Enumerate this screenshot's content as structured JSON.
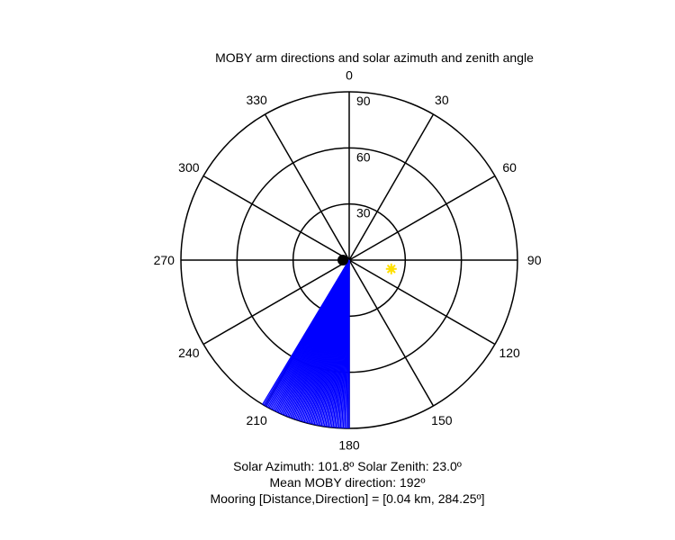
{
  "chart_data": {
    "type": "polar",
    "title": "MOBY arm directions and solar azimuth and zenith angle",
    "angle_ticks": [
      0,
      30,
      60,
      90,
      120,
      150,
      180,
      210,
      240,
      270,
      300,
      330
    ],
    "radial_ticks": [
      30,
      60,
      90
    ],
    "rlim": [
      0,
      90
    ],
    "angle_direction": "clockwise-from-north",
    "sun": {
      "azimuth": 101.8,
      "zenith": 23.0,
      "color": "#ffe000"
    },
    "mooring_marker": {
      "color": "#000000"
    },
    "arm_lines": {
      "color": "#0000ff",
      "length": 90,
      "directions": [
        180,
        180.5,
        181,
        181.5,
        182,
        182.5,
        183,
        183.5,
        184,
        184.5,
        185,
        185.5,
        186,
        186.5,
        187,
        187.5,
        188,
        188.5,
        189,
        189.5,
        190,
        190.5,
        191,
        191.5,
        192,
        192.5,
        193,
        193.5,
        194,
        194.5,
        195,
        195.5,
        196,
        196.5,
        197,
        197.5,
        198,
        198.5,
        199,
        199.5,
        200,
        200.5,
        201,
        201.5,
        202,
        202.5,
        203,
        203.5,
        204,
        204.5,
        205,
        205.5,
        206,
        206.5,
        207,
        207.5,
        208,
        208.5,
        209,
        209.5,
        210,
        210.5,
        211
      ]
    }
  },
  "captions": {
    "solar": "Solar Azimuth: 101.8º   Solar Zenith: 23.0º",
    "moby": "Mean MOBY direction: 192º",
    "mooring": "Mooring [Distance,Direction] = [0.04 km, 284.25º]"
  }
}
